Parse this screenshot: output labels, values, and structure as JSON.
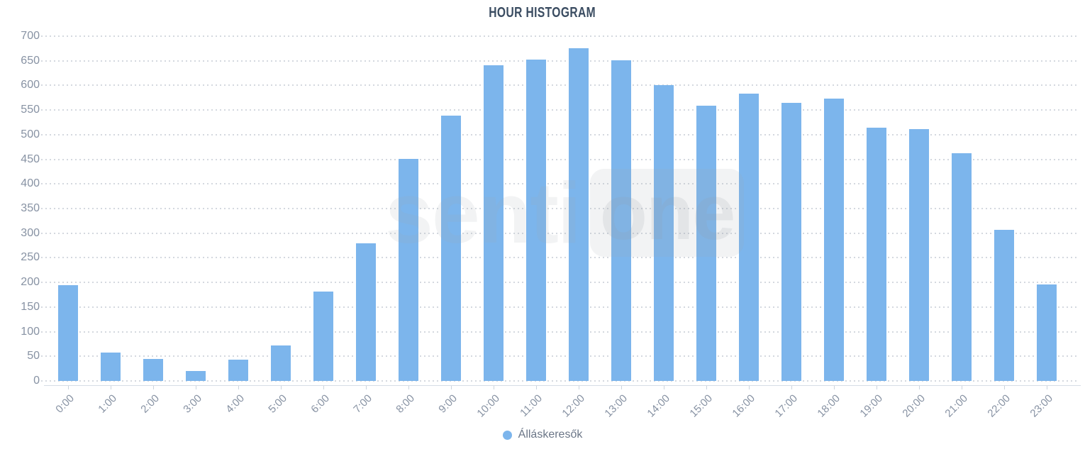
{
  "title": "HOUR HISTOGRAM",
  "watermark": {
    "text_left": "senti",
    "text_boxed": "one"
  },
  "legend": {
    "label": "Álláskeresők"
  },
  "colors": {
    "bar": "#7cb5ec",
    "title": "#3a4c61",
    "axis_label": "#8792a3",
    "legend_text": "#6b7687",
    "gridline": "#c9cfd7",
    "axis_line": "#d6dde5"
  },
  "chart_data": {
    "type": "bar",
    "title": "HOUR HISTOGRAM",
    "categories": [
      "0:00",
      "1:00",
      "2:00",
      "3:00",
      "4:00",
      "5:00",
      "6:00",
      "7:00",
      "8:00",
      "9:00",
      "10:00",
      "11:00",
      "12:00",
      "13:00",
      "14:00",
      "15:00",
      "16:00",
      "17:00",
      "18:00",
      "19:00",
      "20:00",
      "21:00",
      "22:00",
      "23:00"
    ],
    "series": [
      {
        "name": "Álláskeresők",
        "color": "#7cb5ec",
        "values": [
          195,
          58,
          45,
          20,
          43,
          72,
          182,
          280,
          451,
          539,
          641,
          652,
          676,
          651,
          601,
          559,
          583,
          565,
          573,
          514,
          511,
          463,
          307,
          196
        ]
      }
    ],
    "ylim": [
      0,
      700
    ],
    "yticks": [
      0,
      50,
      100,
      150,
      200,
      250,
      300,
      350,
      400,
      450,
      500,
      550,
      600,
      650,
      700
    ],
    "grid": "horizontal-dotted",
    "legend_position": "bottom-center",
    "x_label_rotation": -45
  }
}
